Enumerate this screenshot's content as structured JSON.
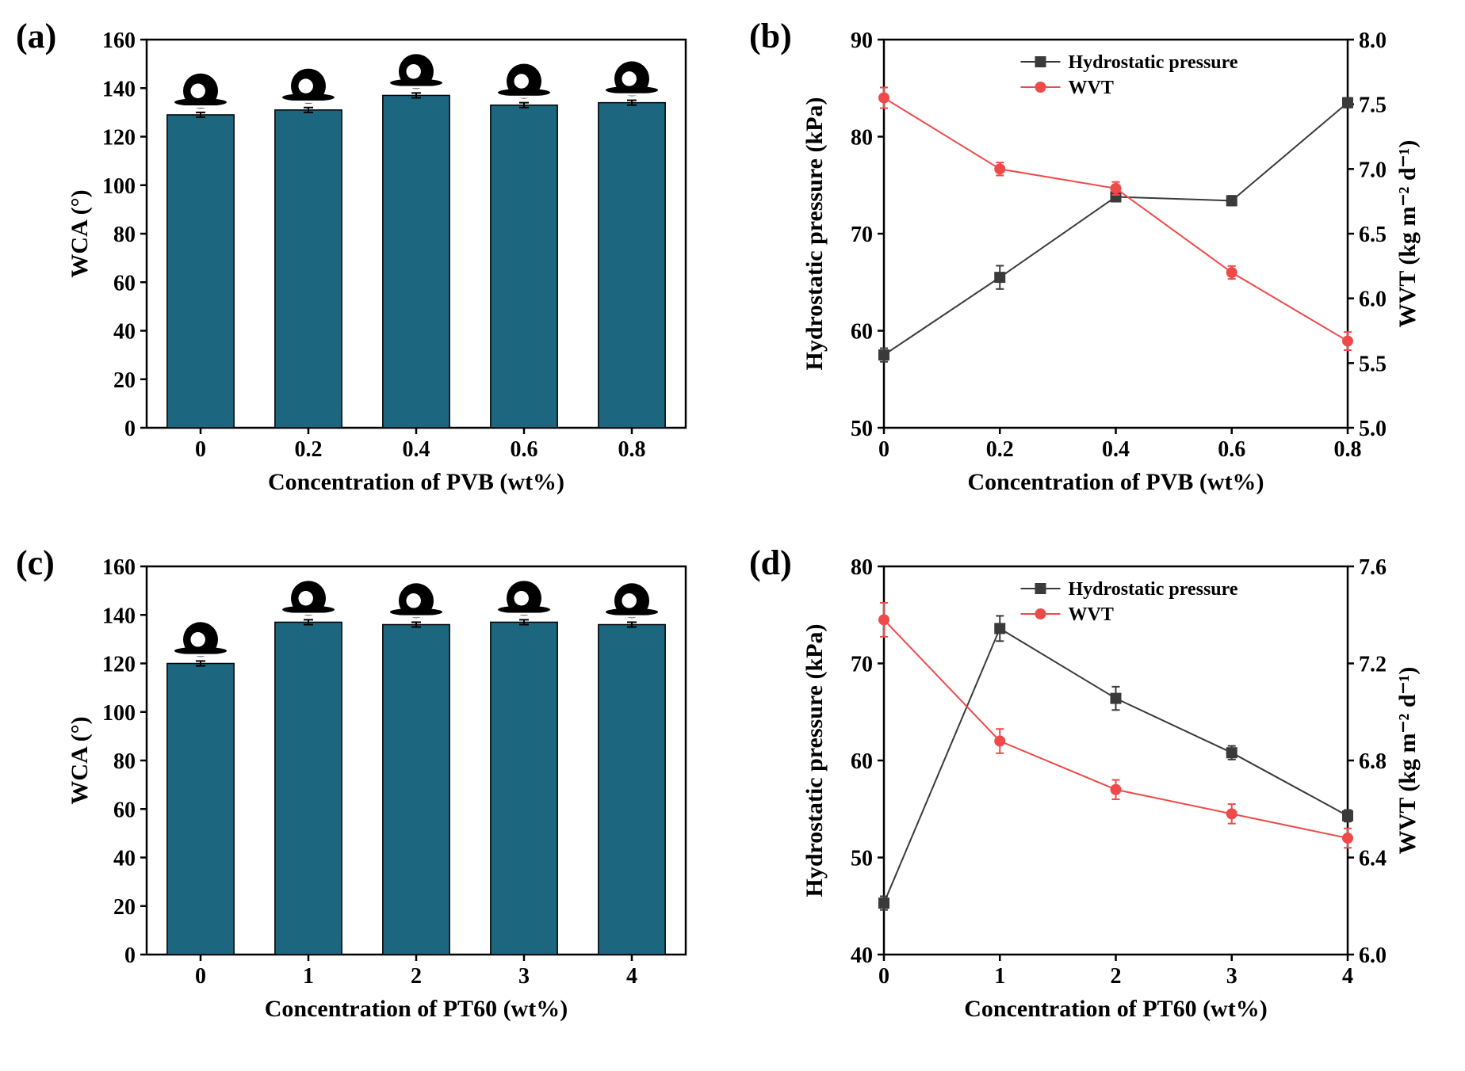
{
  "panels": {
    "a": {
      "label": "(a)",
      "type": "bar",
      "xlabel": "Concentration of PVB (wt%)",
      "ylabel": "WCA (°)",
      "categories": [
        "0",
        "0.2",
        "0.4",
        "0.6",
        "0.8"
      ],
      "values": [
        129,
        131,
        137,
        133,
        134
      ],
      "errors": [
        1,
        1,
        1,
        1,
        1
      ],
      "ylim": [
        0,
        160
      ],
      "ytick_step": 20,
      "bar_color": "#1c6680",
      "bar_border": "#000000",
      "bar_width": 0.62,
      "axis_color": "#000000",
      "tick_fontsize": 28,
      "label_fontsize": 30,
      "droplet_icons": true
    },
    "b": {
      "label": "(b)",
      "type": "dual-line",
      "xlabel": "Concentration of PVB (wt%)",
      "ylabel_left": "Hydrostatic pressure (kPa)",
      "ylabel_right": "WVT (kg m⁻² d⁻¹)",
      "x_values": [
        0,
        0.2,
        0.4,
        0.6,
        0.8
      ],
      "xlim": [
        0,
        0.8
      ],
      "xtick_step": 0.2,
      "series": [
        {
          "name": "Hydrostatic pressure",
          "axis": "left",
          "color": "#3a3a3a",
          "marker": "square",
          "marker_size": 7,
          "line_width": 2,
          "values": [
            57.5,
            65.5,
            73.8,
            73.4,
            83.5
          ],
          "errors": [
            0.7,
            1.2,
            0.5,
            0.5,
            0.5
          ]
        },
        {
          "name": "WVT",
          "axis": "right",
          "color": "#ef4a4a",
          "marker": "circle",
          "marker_size": 7,
          "line_width": 2,
          "values": [
            7.55,
            7.0,
            6.85,
            6.2,
            5.67
          ],
          "errors": [
            0.08,
            0.05,
            0.05,
            0.05,
            0.07
          ]
        }
      ],
      "ylim_left": [
        50,
        90
      ],
      "ytick_step_left": 10,
      "ylim_right": [
        5.0,
        8.0
      ],
      "ytick_step_right": 0.5,
      "axis_color": "#000000",
      "tick_fontsize": 28,
      "label_fontsize": 30,
      "legend_pos": "top-center"
    },
    "c": {
      "label": "(c)",
      "type": "bar",
      "xlabel": "Concentration of PT60 (wt%)",
      "ylabel": "WCA (°)",
      "categories": [
        "0",
        "1",
        "2",
        "3",
        "4"
      ],
      "values": [
        120,
        137,
        136,
        137,
        136
      ],
      "errors": [
        1,
        1,
        1,
        1,
        1
      ],
      "ylim": [
        0,
        160
      ],
      "ytick_step": 20,
      "bar_color": "#1c6680",
      "bar_border": "#000000",
      "bar_width": 0.62,
      "axis_color": "#000000",
      "tick_fontsize": 28,
      "label_fontsize": 30,
      "droplet_icons": true
    },
    "d": {
      "label": "(d)",
      "type": "dual-line",
      "xlabel": "Concentration of PT60 (wt%)",
      "ylabel_left": "Hydrostatic pressure (kPa)",
      "ylabel_right": "WVT (kg m⁻² d⁻¹)",
      "x_values": [
        0,
        1,
        2,
        3,
        4
      ],
      "xlim": [
        0,
        4
      ],
      "xtick_step": 1,
      "series": [
        {
          "name": "Hydrostatic pressure",
          "axis": "left",
          "color": "#3a3a3a",
          "marker": "square",
          "marker_size": 7,
          "line_width": 2,
          "values": [
            45.3,
            73.6,
            66.4,
            60.8,
            54.3
          ],
          "errors": [
            0.7,
            1.3,
            1.2,
            0.7,
            0.6
          ]
        },
        {
          "name": "WVT",
          "axis": "right",
          "color": "#ef4a4a",
          "marker": "circle",
          "marker_size": 7,
          "line_width": 2,
          "values": [
            7.38,
            6.88,
            6.68,
            6.58,
            6.48
          ],
          "errors": [
            0.07,
            0.05,
            0.04,
            0.04,
            0.04
          ]
        }
      ],
      "ylim_left": [
        40,
        80
      ],
      "ytick_step_left": 10,
      "ylim_right": [
        6.0,
        7.6
      ],
      "ytick_step_right": 0.4,
      "axis_color": "#000000",
      "tick_fontsize": 28,
      "label_fontsize": 30,
      "legend_pos": "top-center"
    }
  },
  "colors": {
    "background": "#ffffff"
  }
}
